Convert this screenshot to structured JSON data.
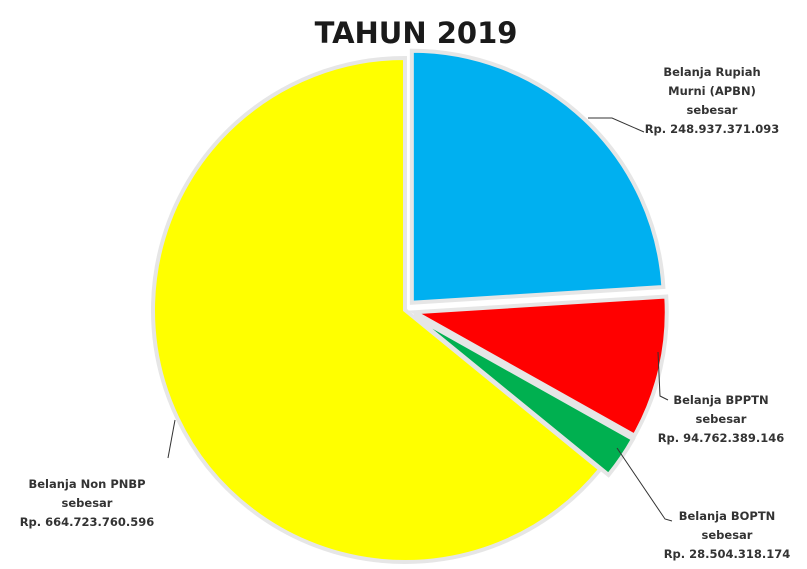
{
  "chart_data": {
    "type": "pie",
    "title": "TAHUN 2019",
    "slices": [
      {
        "name": "Belanja Rupiah Murni (APBN)",
        "value": 248937371093,
        "color": "#00b0f0",
        "label_lines": [
          "Belanja Rupiah",
          "Murni (APBN)",
          "sebesar",
          "Rp. 248.937.371.093"
        ]
      },
      {
        "name": "Belanja BPPTN",
        "value": 94762389146,
        "color": "#ff0000",
        "label_lines": [
          "Belanja BPPTN",
          "sebesar",
          "Rp. 94.762.389.146"
        ]
      },
      {
        "name": "Belanja BOPTN",
        "value": 28504318174,
        "color": "#00b050",
        "label_lines": [
          "Belanja BOPTN",
          "sebesar",
          "Rp. 28.504.318.174"
        ]
      },
      {
        "name": "Belanja Non PNBP",
        "value": 664723760596,
        "color": "#ffff00",
        "label_lines": [
          "Belanja Non PNBP",
          "sebesar",
          "Rp. 664.723.760.596"
        ]
      }
    ],
    "start_angle": "12 o'clock",
    "direction": "clockwise",
    "exploded": true,
    "legend": "none"
  }
}
